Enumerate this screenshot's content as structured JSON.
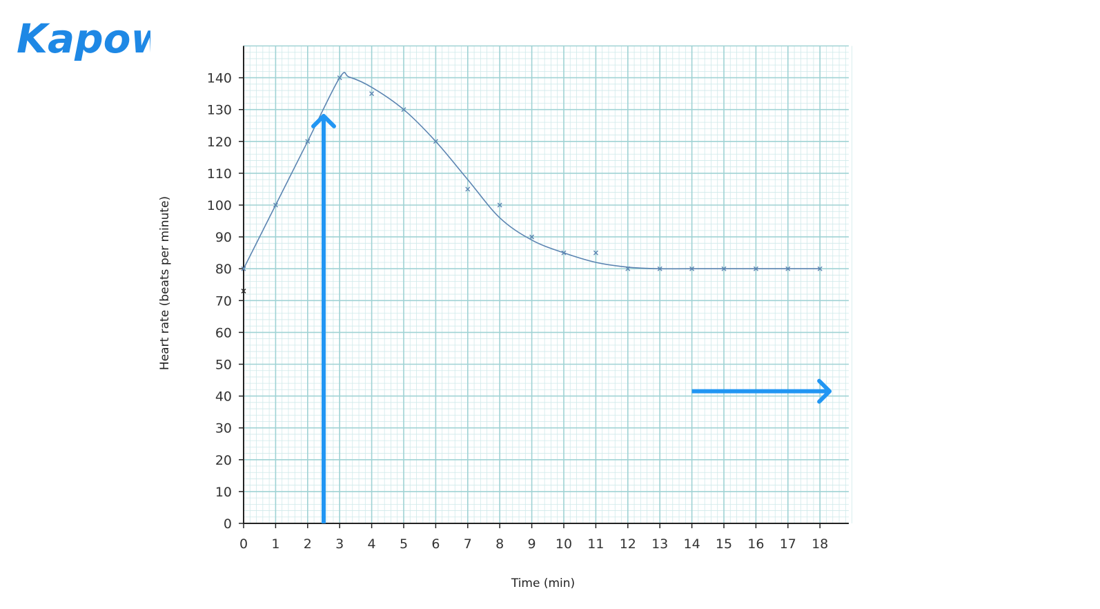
{
  "brand": {
    "logo_text": "Kapow",
    "color": "#1e88e5"
  },
  "colors": {
    "grid_minor": "#cfe9ea",
    "grid_major": "#9fd2d4",
    "axis": "#222222",
    "curve": "#5b84b1",
    "marker": "#5b84b1",
    "arrow": "#2196f3"
  },
  "chart_data": {
    "type": "line",
    "title": "",
    "xlabel": "Time (min)",
    "ylabel": "Heart rate (beats per minute)",
    "xlim": [
      0,
      18.9
    ],
    "ylim": [
      0,
      150
    ],
    "x_ticks": [
      0,
      1,
      2,
      3,
      4,
      5,
      6,
      7,
      8,
      9,
      10,
      11,
      12,
      13,
      14,
      15,
      16,
      17,
      18
    ],
    "y_ticks": [
      0,
      10,
      20,
      30,
      40,
      50,
      60,
      70,
      80,
      90,
      100,
      110,
      120,
      130,
      140
    ],
    "grid": true,
    "series": [
      {
        "type": "scatter",
        "marker": "x",
        "x": [
          0,
          1,
          2,
          3,
          4,
          5,
          6,
          7,
          8,
          9,
          10,
          11,
          12,
          13,
          14,
          15,
          16,
          17,
          18
        ],
        "y": [
          80,
          100,
          120,
          140,
          135,
          130,
          120,
          105,
          100,
          90,
          85,
          85,
          80,
          80,
          80,
          80,
          80,
          80,
          80
        ]
      },
      {
        "type": "line",
        "x": [
          0,
          1,
          2,
          3,
          3.3,
          4,
          5,
          6,
          7,
          8,
          9,
          10,
          11,
          12,
          13,
          14,
          18
        ],
        "y": [
          80,
          100,
          120,
          140,
          140.2,
          137,
          130,
          120,
          108,
          96,
          89,
          85,
          82,
          80.5,
          80,
          80,
          80
        ]
      },
      {
        "type": "scatter",
        "marker": "x",
        "color": "#222222",
        "x": [
          0
        ],
        "y": [
          73
        ]
      }
    ],
    "annotations": [
      {
        "type": "arrow",
        "direction": "up",
        "x": 2.5,
        "y_from": 0,
        "y_to": 128
      },
      {
        "type": "arrow",
        "direction": "right",
        "y": 41.5,
        "x_from": 14,
        "x_to": 18.3
      }
    ]
  }
}
